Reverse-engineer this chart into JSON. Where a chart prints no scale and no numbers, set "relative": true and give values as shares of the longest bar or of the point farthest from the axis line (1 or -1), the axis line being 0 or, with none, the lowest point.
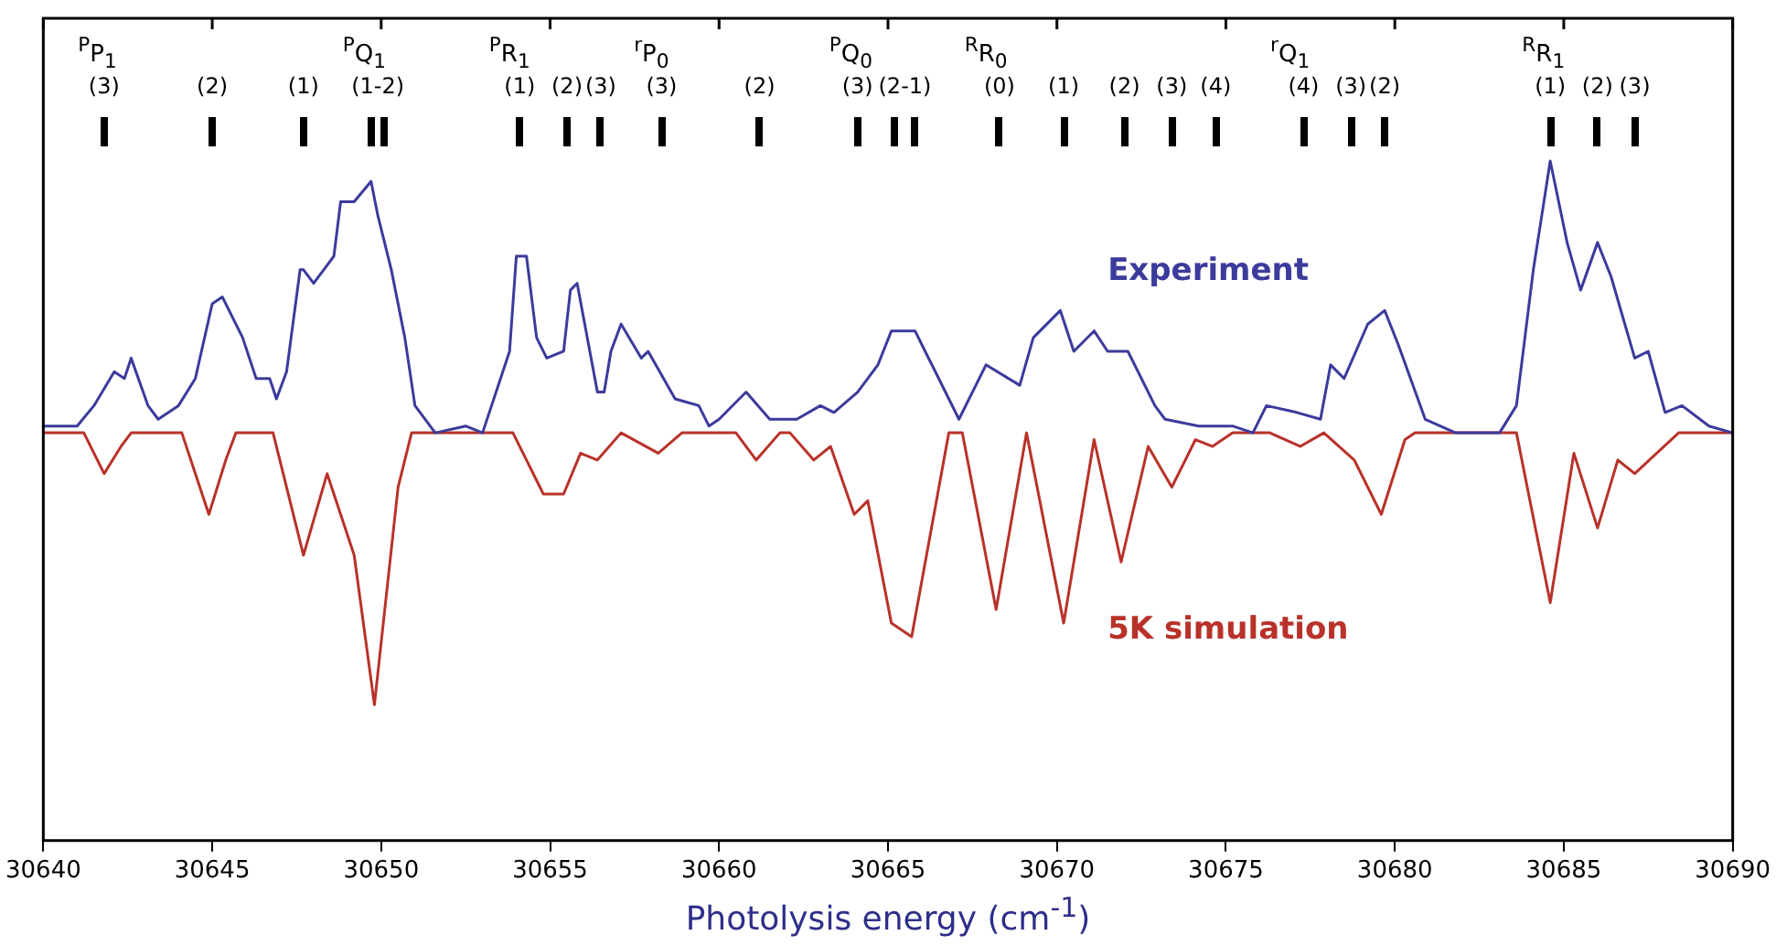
{
  "chart_data": {
    "type": "line",
    "relative": true,
    "xlabel": "Photolysis energy (cm$^{-1}$)",
    "xlim": [
      30640,
      30690
    ],
    "xticks": [
      30640,
      30645,
      30650,
      30655,
      30660,
      30665,
      30670,
      30675,
      30680,
      30685,
      30690
    ],
    "grid": false,
    "legend": false,
    "marker": "none",
    "line_style": "solid",
    "series": [
      {
        "name": "Experiment",
        "color": "#3b3b9c",
        "x": [
          30640,
          30641.0,
          30641.5,
          30642.1,
          30642.4,
          30642.6,
          30643.1,
          30643.4,
          30644.0,
          30644.5,
          30645.0,
          30645.3,
          30645.9,
          30646.3,
          30646.7,
          30646.9,
          30647.2,
          30647.6,
          30647.7,
          30648.0,
          30648.3,
          30648.6,
          30648.8,
          30649.2,
          30649.7,
          30649.9,
          30650.3,
          30650.7,
          30651.0,
          30651.6,
          30652.5,
          30653.0,
          30653.8,
          30654.0,
          30654.3,
          30654.6,
          30654.9,
          30655.4,
          30655.6,
          30655.8,
          30656.4,
          30656.6,
          30656.8,
          30657.1,
          30657.7,
          30657.9,
          30658.7,
          30659.4,
          30659.7,
          30660.0,
          30660.8,
          30661.5,
          30662.3,
          30663.0,
          30663.4,
          30664.1,
          30664.7,
          30665.1,
          30665.8,
          30666.1,
          30667.1,
          30667.9,
          30668.9,
          30669.3,
          30670.1,
          30670.5,
          30671.1,
          30671.5,
          30672.1,
          30672.9,
          30673.2,
          30674.2,
          30675.2,
          30675.8,
          30676.2,
          30677.1,
          30677.8,
          30678.1,
          30678.5,
          30679.2,
          30679.7,
          30680.1,
          30680.9,
          30681.8,
          30683.1,
          30683.6,
          30684.1,
          30684.6,
          30685.1,
          30685.5,
          30686.0,
          30686.4,
          30687.1,
          30687.5,
          30688.0,
          30688.5,
          30689.3,
          30690
        ],
        "values": [
          0.61,
          0.61,
          0.64,
          0.69,
          0.68,
          0.71,
          0.64,
          0.62,
          0.64,
          0.68,
          0.79,
          0.8,
          0.74,
          0.68,
          0.68,
          0.65,
          0.69,
          0.84,
          0.84,
          0.82,
          0.84,
          0.86,
          0.94,
          0.94,
          0.97,
          0.92,
          0.84,
          0.74,
          0.64,
          0.6,
          0.61,
          0.6,
          0.72,
          0.86,
          0.86,
          0.74,
          0.71,
          0.72,
          0.81,
          0.82,
          0.66,
          0.66,
          0.72,
          0.76,
          0.71,
          0.72,
          0.65,
          0.64,
          0.61,
          0.62,
          0.66,
          0.62,
          0.62,
          0.64,
          0.63,
          0.66,
          0.7,
          0.75,
          0.75,
          0.72,
          0.62,
          0.7,
          0.67,
          0.74,
          0.78,
          0.72,
          0.75,
          0.72,
          0.72,
          0.64,
          0.62,
          0.61,
          0.61,
          0.6,
          0.64,
          0.63,
          0.62,
          0.7,
          0.68,
          0.76,
          0.78,
          0.73,
          0.62,
          0.6,
          0.6,
          0.64,
          0.84,
          1,
          0.88,
          0.81,
          0.88,
          0.83,
          0.71,
          0.72,
          0.63,
          0.64,
          0.61,
          0.6
        ]
      },
      {
        "name": "5K simulation",
        "color": "#b8322a",
        "x": [
          30640,
          30641.2,
          30641.8,
          30642.3,
          30642.6,
          30644.1,
          30644.9,
          30645.4,
          30645.7,
          30646.8,
          30647.7,
          30648.4,
          30649.2,
          30649.8,
          30650.5,
          30650.9,
          30653.9,
          30654.8,
          30655.4,
          30655.9,
          30656.4,
          30657.1,
          30658.2,
          30658.9,
          30660.5,
          30661.1,
          30661.8,
          30662.1,
          30662.8,
          30663.3,
          30664.0,
          30664.4,
          30665.1,
          30665.7,
          30666.8,
          30667.2,
          30668.2,
          30669.1,
          30670.2,
          30671.1,
          30671.9,
          30672.7,
          30673.4,
          30674.1,
          30674.6,
          30675.2,
          30676.3,
          30677.2,
          30677.9,
          30678.8,
          30679.6,
          30680.3,
          30680.6,
          30683.6,
          30684.6,
          30685.3,
          30686.0,
          30686.6,
          30687.1,
          30688.4,
          30690
        ],
        "values": [
          0.6,
          0.6,
          0.54,
          0.58,
          0.6,
          0.6,
          0.48,
          0.56,
          0.6,
          0.6,
          0.42,
          0.54,
          0.42,
          0.2,
          0.52,
          0.6,
          0.6,
          0.51,
          0.51,
          0.57,
          0.56,
          0.6,
          0.57,
          0.6,
          0.6,
          0.56,
          0.6,
          0.6,
          0.56,
          0.58,
          0.48,
          0.5,
          0.32,
          0.3,
          0.6,
          0.6,
          0.34,
          0.6,
          0.32,
          0.59,
          0.41,
          0.58,
          0.52,
          0.59,
          0.58,
          0.6,
          0.6,
          0.58,
          0.6,
          0.56,
          0.48,
          0.59,
          0.6,
          0.6,
          0.35,
          0.57,
          0.46,
          0.56,
          0.54,
          0.6,
          0.6
        ]
      }
    ],
    "annotations": [
      "$^{P}$P$_{1}$",
      "$^{P}$Q$_{1}$",
      "$^{P}$R$_{1}$",
      "$^{r}$P$_{0}$",
      "$^{P}$Q$_{0}$",
      "$^{R}$R$_{0}$",
      "$^{r}$Q$_{1}$",
      "$^{R}$R$_{1}$",
      "(3)",
      "(2)",
      "(1)",
      "(1-2)",
      "(1)",
      "(2)",
      "(3)",
      "(3)",
      "(2)",
      "(3)",
      "(2-1)",
      "(0)",
      "(1)",
      "(2)",
      "(3)",
      "(4)",
      "(4)",
      "(3)",
      "(2)",
      "(1)",
      "(2)",
      "(3)"
    ]
  }
}
